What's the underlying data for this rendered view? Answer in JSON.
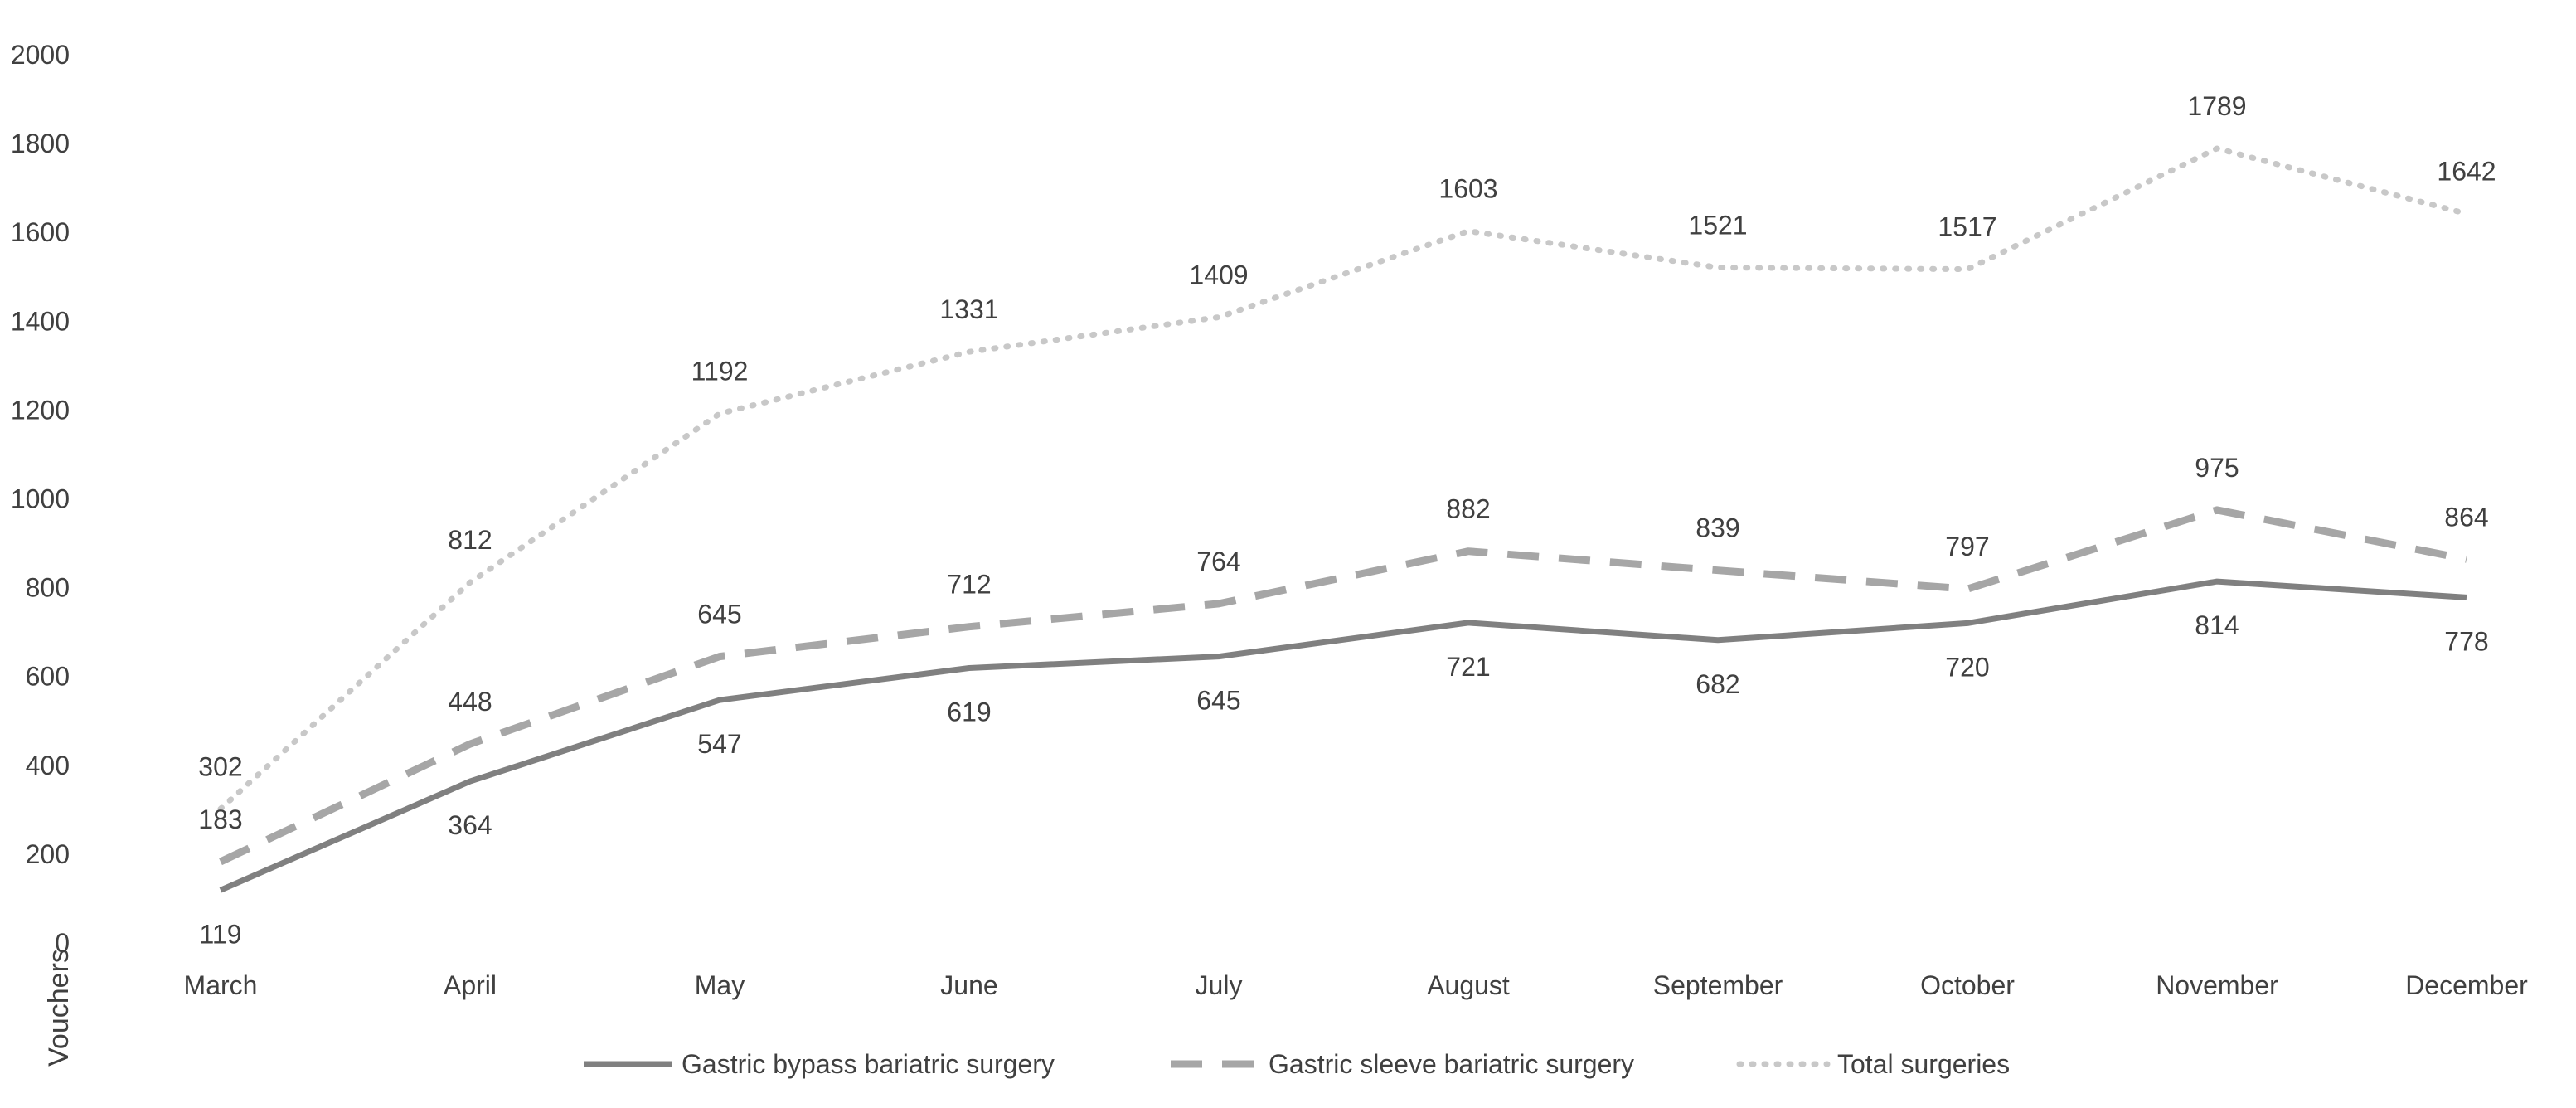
{
  "chart_data": {
    "type": "line",
    "title": "",
    "xlabel": "",
    "ylabel": "Vouchers",
    "ylim": [
      0,
      2000
    ],
    "yticks": [
      0,
      200,
      400,
      600,
      800,
      1000,
      1200,
      1400,
      1600,
      1800,
      2000
    ],
    "grid": false,
    "legend_position": "bottom",
    "categories": [
      "March",
      "April",
      "May",
      "June",
      "July",
      "August",
      "September",
      "October",
      "November",
      "December"
    ],
    "series": [
      {
        "name": "Gastric bypass bariatric surgery",
        "values": [
          119,
          364,
          547,
          619,
          645,
          721,
          682,
          720,
          814,
          778
        ],
        "color": "#808080",
        "style": "solid",
        "label_position": "below"
      },
      {
        "name": "Gastric sleeve bariatric surgery",
        "values": [
          183,
          448,
          645,
          712,
          764,
          882,
          839,
          797,
          975,
          864
        ],
        "color": "#a6a6a6",
        "style": "dashed",
        "label_position": "above"
      },
      {
        "name": "Total surgeries",
        "values": [
          302,
          812,
          1192,
          1331,
          1409,
          1603,
          1521,
          1517,
          1789,
          1642
        ],
        "color": "#c8c8c8",
        "style": "dotted",
        "label_position": "above"
      }
    ]
  }
}
